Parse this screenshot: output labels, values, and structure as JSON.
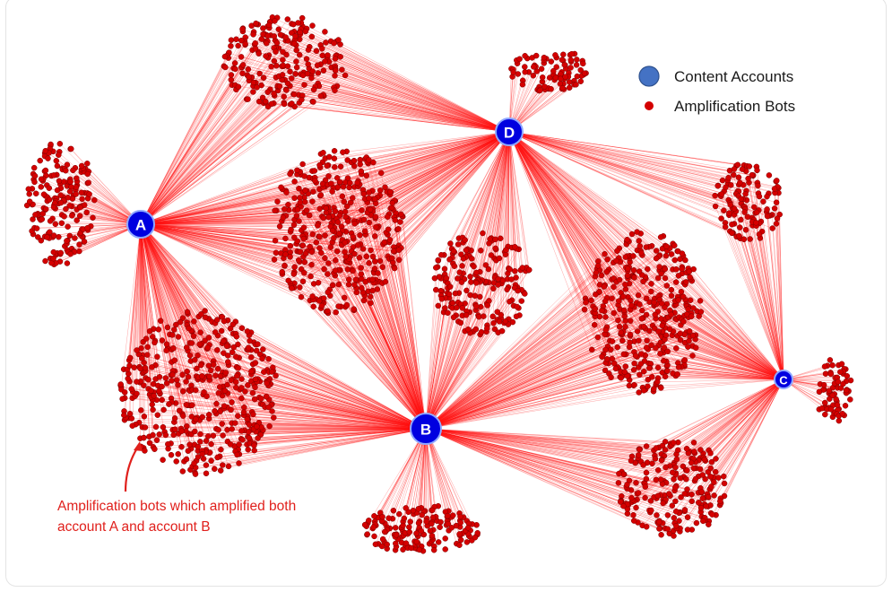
{
  "legend": {
    "content_label": "Content Accounts",
    "bots_label": "Amplification Bots",
    "content_color": "#4472c4",
    "bot_color": "#d40000"
  },
  "hubs": [
    {
      "id": "A",
      "label": "A"
    },
    {
      "id": "B",
      "label": "B"
    },
    {
      "id": "C",
      "label": "C"
    },
    {
      "id": "D",
      "label": "D"
    }
  ],
  "colors": {
    "hub_fill": "#0000e0",
    "hub_stroke": "#8fa8ff",
    "edge": "#ff1010",
    "bot": "#d40000",
    "annotation": "#e0201c"
  },
  "annotation": {
    "line1": "Amplification bots which amplified both",
    "line2": "account A and account B"
  }
}
